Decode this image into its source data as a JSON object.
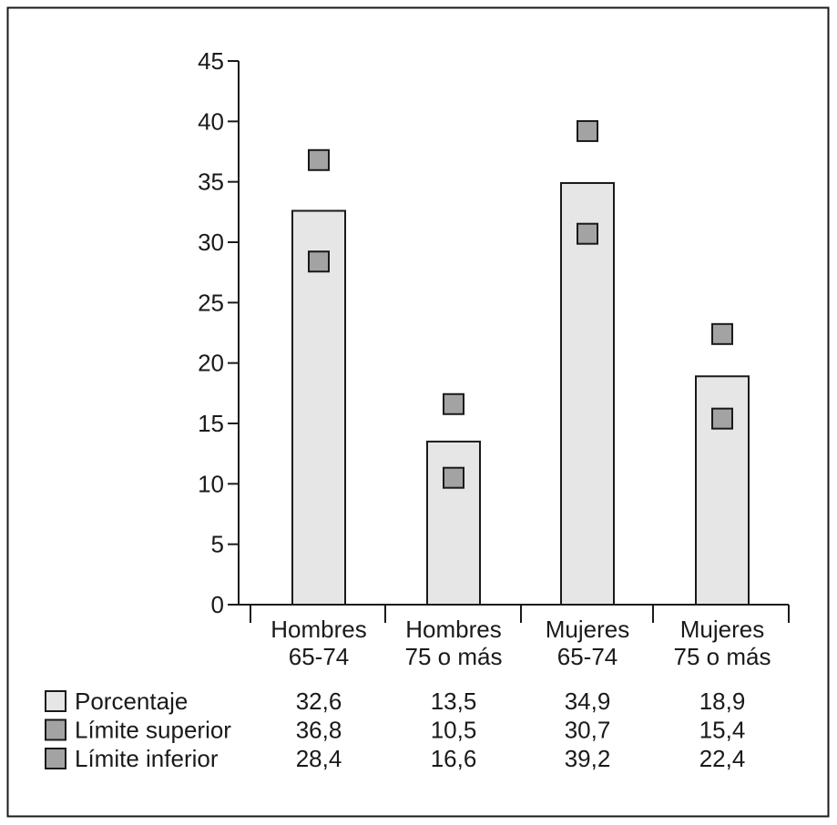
{
  "chart_data": {
    "type": "bar",
    "title": "",
    "xlabel": "",
    "ylabel": "",
    "ylim": [
      0,
      45
    ],
    "yticks": [
      0,
      5,
      10,
      15,
      20,
      25,
      30,
      35,
      40,
      45
    ],
    "categories": [
      [
        "Hombres",
        "65-74"
      ],
      [
        "Hombres",
        "75 o más"
      ],
      [
        "Mujeres",
        "65-74"
      ],
      [
        "Mujeres",
        "75 o más"
      ]
    ],
    "series": [
      {
        "name": "Porcentaje",
        "kind": "bar",
        "display": [
          "32,6",
          "13,5",
          "34,9",
          "18,9"
        ],
        "values": [
          32.6,
          13.5,
          34.9,
          18.9
        ],
        "color": "#e6e6e6"
      },
      {
        "name": "Límite superior",
        "kind": "marker",
        "display": [
          "36,8",
          "10,5",
          "30,7",
          "15,4"
        ],
        "values": [
          36.8,
          10.5,
          30.7,
          15.4
        ],
        "color": "#a3a3a3"
      },
      {
        "name": "Límite inferior",
        "kind": "marker",
        "display": [
          "28,4",
          "16,6",
          "39,2",
          "22,4"
        ],
        "values": [
          28.4,
          16.6,
          39.2,
          22.4
        ],
        "color": "#a3a3a3"
      }
    ],
    "grid": false,
    "legend": "bottom-table"
  }
}
